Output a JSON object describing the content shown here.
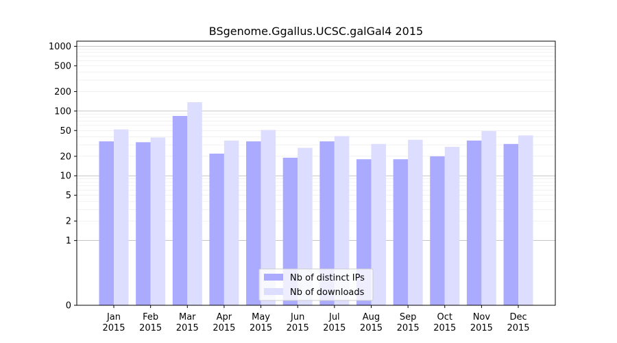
{
  "chart_data": {
    "type": "bar",
    "title": "BSgenome.Ggallus.UCSC.galGal4 2015",
    "xlabel": "",
    "ylabel": "",
    "yscale": "symlog",
    "ylim": [
      0,
      1200
    ],
    "grid": "horizontal",
    "categories": [
      "Jan\n2015",
      "Feb\n2015",
      "Mar\n2015",
      "Apr\n2015",
      "May\n2015",
      "Jun\n2015",
      "Jul\n2015",
      "Aug\n2015",
      "Sep\n2015",
      "Oct\n2015",
      "Nov\n2015",
      "Dec\n2015"
    ],
    "yticks": [
      0,
      1,
      2,
      5,
      10,
      20,
      50,
      100,
      200,
      500,
      1000
    ],
    "series": [
      {
        "name": "Nb of distinct IPs",
        "color": "#aaaaff",
        "values": [
          34,
          33,
          84,
          22,
          34,
          19,
          34,
          18,
          18,
          20,
          35,
          31
        ]
      },
      {
        "name": "Nb of downloads",
        "color": "#ddddff",
        "values": [
          52,
          39,
          137,
          35,
          51,
          27,
          41,
          31,
          36,
          28,
          49,
          42
        ]
      }
    ],
    "legend": "bottom-center"
  }
}
